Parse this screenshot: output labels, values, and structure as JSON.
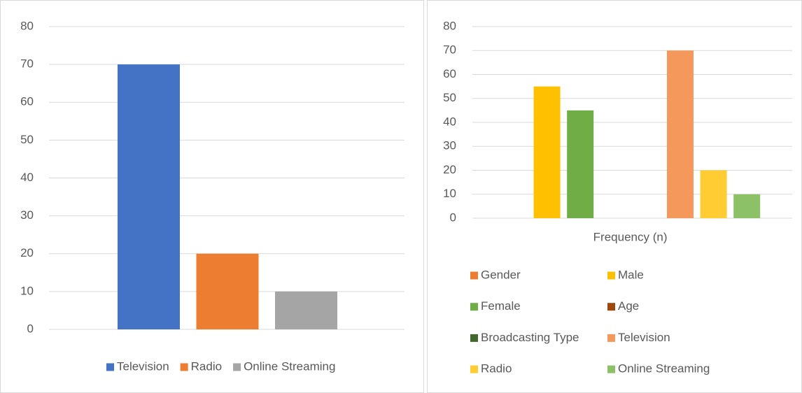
{
  "chart_data": [
    {
      "type": "bar",
      "categories": [
        null
      ],
      "series": [
        {
          "name": "Television",
          "color": "#4472c4",
          "values": [
            70
          ]
        },
        {
          "name": "Radio",
          "color": "#ed7d31",
          "values": [
            20
          ]
        },
        {
          "name": "Online Streaming",
          "color": "#a5a5a5",
          "values": [
            10
          ]
        }
      ],
      "ylim": [
        0,
        80
      ],
      "yticks": [
        0,
        10,
        20,
        30,
        40,
        50,
        60,
        70,
        80
      ],
      "grid": true,
      "legend": "bottom"
    },
    {
      "type": "bar",
      "categories": [
        "Frequency (n)"
      ],
      "series": [
        {
          "name": "Gender",
          "color": "#ed7d31",
          "values": [
            null
          ]
        },
        {
          "name": "Male",
          "color": "#ffc000",
          "values": [
            55
          ]
        },
        {
          "name": "Female",
          "color": "#70ad47",
          "values": [
            45
          ]
        },
        {
          "name": "Age",
          "color": "#9e480e",
          "values": [
            null
          ]
        },
        {
          "name": "Broadcasting Type",
          "color": "#43682b",
          "values": [
            null
          ]
        },
        {
          "name": "Television",
          "color": "#f4995b",
          "values": [
            70
          ]
        },
        {
          "name": "Radio",
          "color": "#ffcd33",
          "values": [
            20
          ]
        },
        {
          "name": "Online Streaming",
          "color": "#8cc168",
          "values": [
            10
          ]
        }
      ],
      "ylim": [
        0,
        80
      ],
      "yticks": [
        0,
        10,
        20,
        30,
        40,
        50,
        60,
        70,
        80
      ],
      "grid": true,
      "legend": "bottom"
    }
  ]
}
